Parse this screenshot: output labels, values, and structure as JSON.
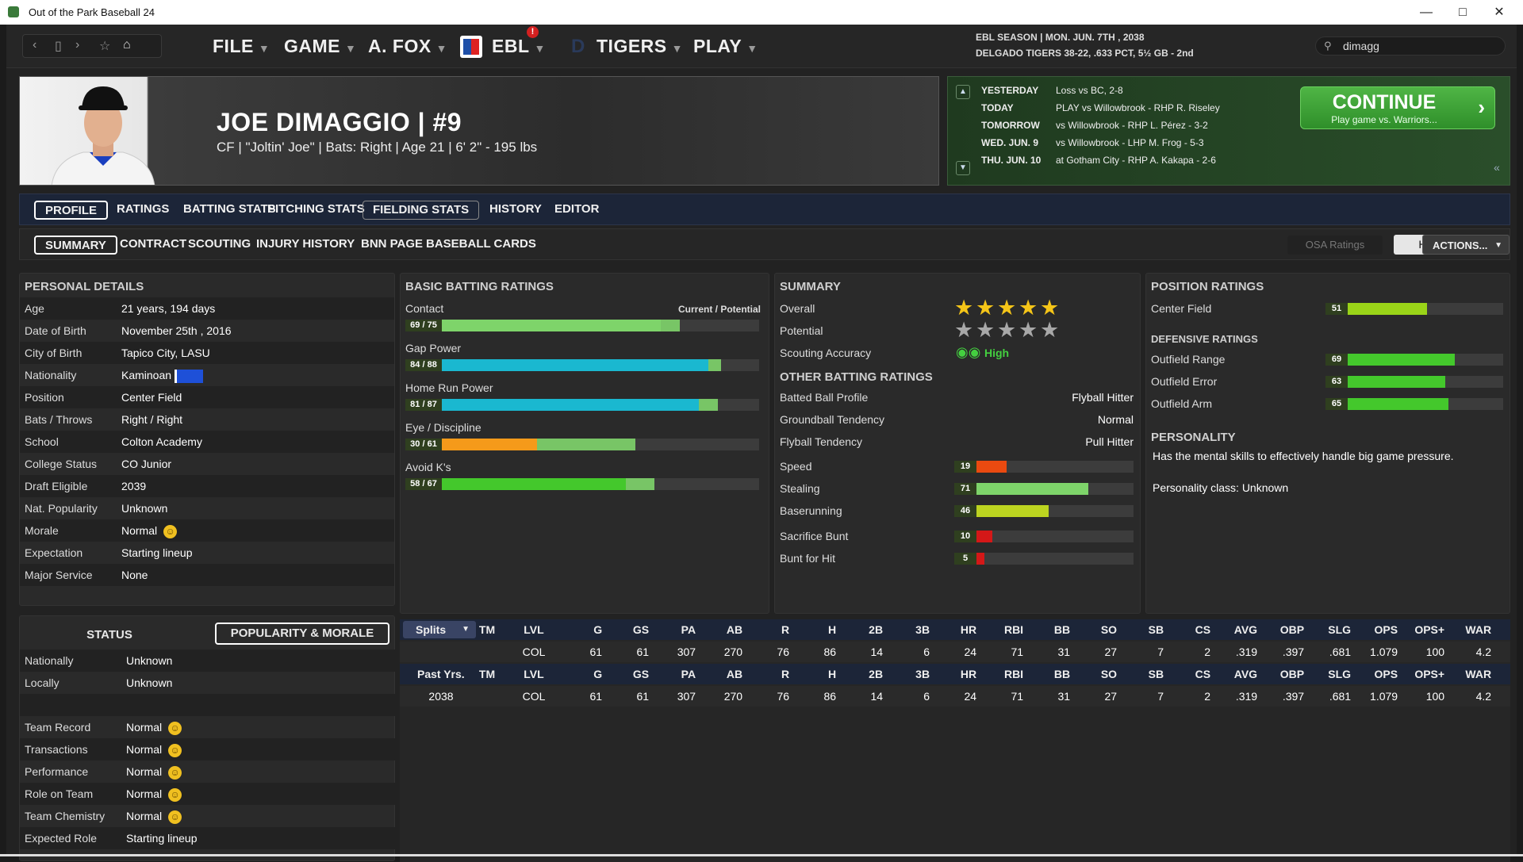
{
  "window": {
    "title": "Out of the Park Baseball 24"
  },
  "nav": {
    "menus": [
      {
        "label": "FILE"
      },
      {
        "label": "GAME"
      },
      {
        "label": "A. FOX"
      },
      {
        "label": "EBL",
        "badge": "!"
      },
      {
        "label": "TIGERS"
      },
      {
        "label": "PLAY"
      }
    ],
    "season_line1": "EBL SEASON  |  MON. JUN. 7TH , 2038",
    "season_line2": "DELGADO TIGERS  38-22, .633 PCT, 5½ GB - 2nd",
    "search_value": "dimagg"
  },
  "player": {
    "name": "JOE DIMAGGIO  |  #9",
    "info": "CF | \"Joltin' Joe\" | Bats: Right  |  Age 21  |  6' 2\" - 195 lbs"
  },
  "schedule": {
    "rows": [
      {
        "day": "YESTERDAY",
        "text": "Loss vs BC, 2-8"
      },
      {
        "day": "TODAY",
        "text": "PLAY vs Willowbrook - RHP R. Riseley"
      },
      {
        "day": "TOMORROW",
        "text": "vs Willowbrook - RHP L. Pérez - 3-2"
      },
      {
        "day": "WED. JUN. 9",
        "text": "vs Willowbrook - LHP M. Frog - 5-3"
      },
      {
        "day": "THU. JUN. 10",
        "text": "at Gotham City - RHP A. Kakapa - 2-6"
      }
    ],
    "continue_label": "CONTINUE",
    "continue_sub": "Play game vs. Warriors..."
  },
  "tabs": [
    "PROFILE",
    "RATINGS",
    "BATTING STATS",
    "PITCHING STATS",
    "FIELDING STATS",
    "HISTORY",
    "EDITOR"
  ],
  "subtabs": [
    "SUMMARY",
    "CONTRACT",
    "SCOUTING",
    "INJURY HISTORY",
    "BNN PAGE",
    "BASEBALL CARDS"
  ],
  "osa_label": "OSA Ratings",
  "head_scout_label": "Head Scout",
  "actions_label": "ACTIONS...",
  "personal": {
    "title": "PERSONAL DETAILS",
    "rows": [
      {
        "k": "Age",
        "v": "21 years, 194 days"
      },
      {
        "k": "Date of Birth",
        "v": "November 25th , 2016"
      },
      {
        "k": "City of Birth",
        "v": "Tapico City, LASU"
      },
      {
        "k": "Nationality",
        "v": "Kaminoan"
      },
      {
        "k": "Position",
        "v": "Center Field"
      },
      {
        "k": "Bats / Throws",
        "v": "Right / Right"
      },
      {
        "k": "School",
        "v": "Colton Academy"
      },
      {
        "k": "College Status",
        "v": "CO Junior"
      },
      {
        "k": "Draft Eligible",
        "v": "2039"
      },
      {
        "k": "Nat. Popularity",
        "v": "Unknown"
      },
      {
        "k": "Morale",
        "v": "Normal"
      },
      {
        "k": "Expectation",
        "v": "Starting lineup"
      },
      {
        "k": "Major Service",
        "v": "None"
      }
    ]
  },
  "status": {
    "title": "STATUS",
    "popularity_btn": "POPULARITY & MORALE",
    "rows": [
      {
        "k": "Nationally",
        "v": "Unknown"
      },
      {
        "k": "Locally",
        "v": "Unknown"
      },
      {
        "k": "",
        "v": ""
      },
      {
        "k": "Team Record",
        "v": "Normal"
      },
      {
        "k": "Transactions",
        "v": "Normal"
      },
      {
        "k": "Performance",
        "v": "Normal"
      },
      {
        "k": "Role on Team",
        "v": "Normal"
      },
      {
        "k": "Team Chemistry",
        "v": "Normal"
      },
      {
        "k": "Expected Role",
        "v": "Starting lineup"
      }
    ]
  },
  "batting": {
    "title": "BASIC BATTING RATINGS",
    "header_right": "Current / Potential",
    "ratings": [
      {
        "label": "Contact",
        "text": "69 / 75",
        "current": 69,
        "potential": 75,
        "color": "#7ed46a"
      },
      {
        "label": "Gap Power",
        "text": "84 / 88",
        "current": 84,
        "potential": 88,
        "color": "#1ab8d0"
      },
      {
        "label": "Home Run Power",
        "text": "81 / 87",
        "current": 81,
        "potential": 87,
        "color": "#1ab8d0"
      },
      {
        "label": "Eye / Discipline",
        "text": "30 / 61",
        "current": 30,
        "potential": 61,
        "color": "#f59a1a"
      },
      {
        "label": "Avoid K's",
        "text": "58 / 67",
        "current": 58,
        "potential": 67,
        "color": "#44c82c"
      }
    ]
  },
  "summary": {
    "title": "SUMMARY",
    "overall_label": "Overall",
    "overall_stars": 5,
    "potential_label": "Potential",
    "potential_stars": 0,
    "scouting_label": "Scouting Accuracy",
    "scouting_value": "High",
    "other_title": "OTHER BATTING RATINGS",
    "other": [
      {
        "k": "Batted Ball Profile",
        "v": "Flyball Hitter"
      },
      {
        "k": "Groundball Tendency",
        "v": "Normal"
      },
      {
        "k": "Flyball Tendency",
        "v": "Pull Hitter"
      }
    ],
    "bars": [
      {
        "label": "Speed",
        "value": 19,
        "color": "#ea4a10"
      },
      {
        "label": "Stealing",
        "value": 71,
        "color": "#7ed46a"
      },
      {
        "label": "Baserunning",
        "value": 46,
        "color": "#bcd420"
      },
      {
        "label": "Sacrifice Bunt",
        "value": 10,
        "color": "#d41818"
      },
      {
        "label": "Bunt for Hit",
        "value": 5,
        "color": "#d41818"
      }
    ]
  },
  "position": {
    "title": "POSITION RATINGS",
    "rows": [
      {
        "label": "Center Field",
        "value": 51,
        "color": "#9ad418"
      }
    ],
    "defensive_title": "DEFENSIVE RATINGS",
    "defensive": [
      {
        "label": "Outfield Range",
        "value": 69,
        "color": "#44c82c"
      },
      {
        "label": "Outfield Error",
        "value": 63,
        "color": "#44c82c"
      },
      {
        "label": "Outfield Arm",
        "value": 65,
        "color": "#44c82c"
      }
    ],
    "personality_title": "PERSONALITY",
    "personality_text": "Has the mental skills to effectively handle big game pressure.",
    "personality_class": "Personality class: Unknown"
  },
  "stats": {
    "columns": [
      "TM",
      "LVL",
      "G",
      "GS",
      "PA",
      "AB",
      "R",
      "H",
      "2B",
      "3B",
      "HR",
      "RBI",
      "BB",
      "SO",
      "SB",
      "CS",
      "AVG",
      "OBP",
      "SLG",
      "OPS",
      "OPS+",
      "WAR"
    ],
    "splits_label": "Splits",
    "current_row": [
      "",
      "COL",
      "61",
      "61",
      "307",
      "270",
      "76",
      "86",
      "14",
      "6",
      "24",
      "71",
      "31",
      "27",
      "7",
      "2",
      ".319",
      ".397",
      ".681",
      "1.079",
      "100",
      "4.2"
    ],
    "past_label": "Past Yrs.",
    "past_row": [
      "2038",
      "",
      "COL",
      "61",
      "61",
      "307",
      "270",
      "76",
      "86",
      "14",
      "6",
      "24",
      "71",
      "31",
      "27",
      "7",
      "2",
      ".319",
      ".397",
      ".681",
      "1.079",
      "100",
      "4.2"
    ]
  }
}
